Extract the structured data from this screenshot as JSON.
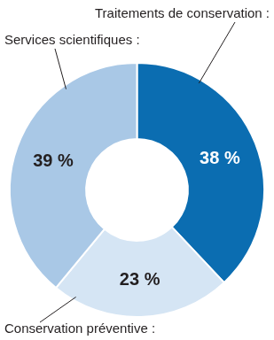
{
  "chart_data": {
    "type": "doughnut",
    "categories": [
      "Traitements de conservation :",
      "Conservation préventive :",
      "Services scientifiques :"
    ],
    "values": [
      38,
      23,
      39
    ],
    "value_labels": [
      "38 %",
      "23 %",
      "39 %"
    ],
    "colors": [
      "#0b6db1",
      "#d5e5f4",
      "#a9c8e6"
    ],
    "data_labels": true
  }
}
